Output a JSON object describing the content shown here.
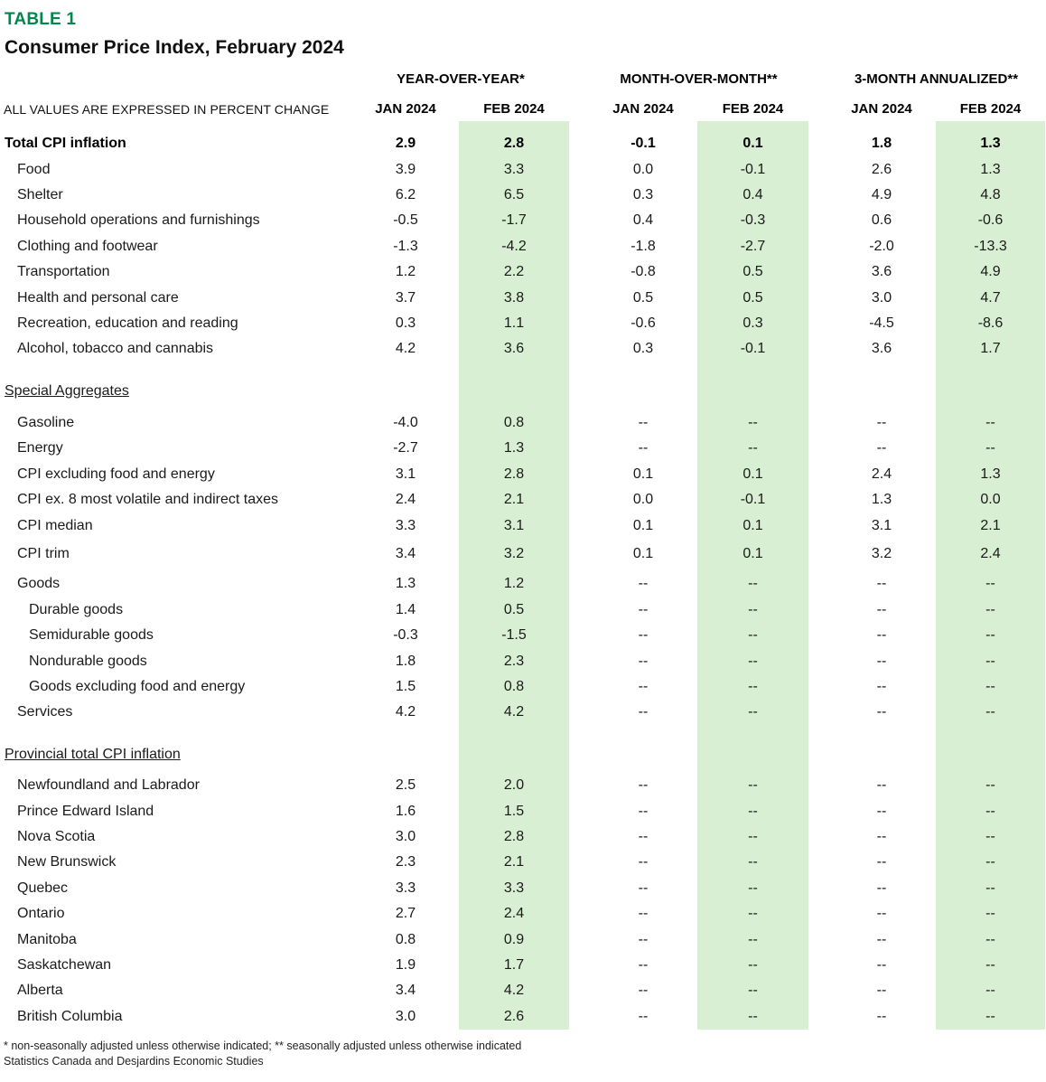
{
  "header": {
    "table_tag": "TABLE 1",
    "title": "Consumer Price Index, February 2024",
    "note": "ALL VALUES ARE EXPRESSED IN PERCENT CHANGE",
    "groups": [
      "YEAR-OVER-YEAR*",
      "MONTH-OVER-MONTH**",
      "3-MONTH ANNUALIZED**"
    ],
    "months": [
      "JAN 2024",
      "FEB 2024",
      "JAN 2024",
      "FEB 2024",
      "JAN 2024",
      "FEB 2024"
    ]
  },
  "colors": {
    "accent_green": "#00874e",
    "feb_band_green": "#d9efd3"
  },
  "table": {
    "rows": [
      {
        "label": "Total CPI inflation",
        "style": "total",
        "indent": 0,
        "values": [
          "2.9",
          "2.8",
          "-0.1",
          "0.1",
          "1.8",
          "1.3"
        ]
      },
      {
        "label": "Food",
        "indent": 1,
        "values": [
          "3.9",
          "3.3",
          "0.0",
          "-0.1",
          "2.6",
          "1.3"
        ]
      },
      {
        "label": "Shelter",
        "indent": 1,
        "values": [
          "6.2",
          "6.5",
          "0.3",
          "0.4",
          "4.9",
          "4.8"
        ]
      },
      {
        "label": "Household operations and furnishings",
        "indent": 1,
        "values": [
          "-0.5",
          "-1.7",
          "0.4",
          "-0.3",
          "0.6",
          "-0.6"
        ]
      },
      {
        "label": "Clothing and footwear",
        "indent": 1,
        "values": [
          "-1.3",
          "-4.2",
          "-1.8",
          "-2.7",
          "-2.0",
          "-13.3"
        ]
      },
      {
        "label": "Transportation",
        "indent": 1,
        "values": [
          "1.2",
          "2.2",
          "-0.8",
          "0.5",
          "3.6",
          "4.9"
        ]
      },
      {
        "label": "Health and personal care",
        "indent": 1,
        "values": [
          "3.7",
          "3.8",
          "0.5",
          "0.5",
          "3.0",
          "4.7"
        ]
      },
      {
        "label": "Recreation, education and reading",
        "indent": 1,
        "values": [
          "0.3",
          "1.1",
          "-0.6",
          "0.3",
          "-4.5",
          "-8.6"
        ]
      },
      {
        "label": "Alcohol, tobacco and cannabis",
        "indent": 1,
        "values": [
          "4.2",
          "3.6",
          "0.3",
          "-0.1",
          "3.6",
          "1.7"
        ]
      },
      {
        "label": "Special Aggregates",
        "style": "section",
        "indent": 0,
        "gap": 18,
        "values": []
      },
      {
        "label": "Gasoline",
        "indent": 1,
        "gap": 7,
        "values": [
          "-4.0",
          "0.8",
          "--",
          "--",
          "--",
          "--"
        ]
      },
      {
        "label": "Energy",
        "indent": 1,
        "values": [
          "-2.7",
          "1.3",
          "--",
          "--",
          "--",
          "--"
        ]
      },
      {
        "label": "CPI excluding food and energy",
        "indent": 1,
        "values": [
          "3.1",
          "2.8",
          "0.1",
          "0.1",
          "2.4",
          "1.3"
        ]
      },
      {
        "label": "CPI ex. 8 most volatile and indirect taxes",
        "indent": 1,
        "values": [
          "2.4",
          "2.1",
          "0.0",
          "-0.1",
          "1.3",
          "0.0"
        ]
      },
      {
        "label": "CPI median",
        "indent": 1,
        "values": [
          "3.3",
          "3.1",
          "0.1",
          "0.1",
          "3.1",
          "2.1"
        ]
      },
      {
        "label": "CPI trim",
        "indent": 1,
        "gap": 3,
        "values": [
          "3.4",
          "3.2",
          "0.1",
          "0.1",
          "3.2",
          "2.4"
        ]
      },
      {
        "label": "Goods",
        "indent": 1,
        "gap": 5,
        "values": [
          "1.3",
          "1.2",
          "--",
          "--",
          "--",
          "--"
        ]
      },
      {
        "label": "Durable goods",
        "indent": 2,
        "values": [
          "1.4",
          "0.5",
          "--",
          "--",
          "--",
          "--"
        ]
      },
      {
        "label": "Semidurable goods",
        "indent": 2,
        "values": [
          "-0.3",
          "-1.5",
          "--",
          "--",
          "--",
          "--"
        ]
      },
      {
        "label": "Nondurable goods",
        "indent": 2,
        "values": [
          "1.8",
          "2.3",
          "--",
          "--",
          "--",
          "--"
        ]
      },
      {
        "label": "Goods excluding food and energy",
        "indent": 2,
        "values": [
          "1.5",
          "0.8",
          "--",
          "--",
          "--",
          "--"
        ]
      },
      {
        "label": "Services",
        "indent": 1,
        "values": [
          "4.2",
          "4.2",
          "--",
          "--",
          "--",
          "--"
        ]
      },
      {
        "label": "Provincial total CPI inflation",
        "style": "section",
        "indent": 0,
        "gap": 18,
        "values": []
      },
      {
        "label": "Newfoundland and Labrador",
        "indent": 1,
        "gap": 6,
        "values": [
          "2.5",
          "2.0",
          "--",
          "--",
          "--",
          "--"
        ]
      },
      {
        "label": "Prince Edward Island",
        "indent": 1,
        "values": [
          "1.6",
          "1.5",
          "--",
          "--",
          "--",
          "--"
        ]
      },
      {
        "label": "Nova Scotia",
        "indent": 1,
        "values": [
          "3.0",
          "2.8",
          "--",
          "--",
          "--",
          "--"
        ]
      },
      {
        "label": "New Brunswick",
        "indent": 1,
        "values": [
          "2.3",
          "2.1",
          "--",
          "--",
          "--",
          "--"
        ]
      },
      {
        "label": "Quebec",
        "indent": 1,
        "values": [
          "3.3",
          "3.3",
          "--",
          "--",
          "--",
          "--"
        ]
      },
      {
        "label": "Ontario",
        "indent": 1,
        "values": [
          "2.7",
          "2.4",
          "--",
          "--",
          "--",
          "--"
        ]
      },
      {
        "label": "Manitoba",
        "indent": 1,
        "values": [
          "0.8",
          "0.9",
          "--",
          "--",
          "--",
          "--"
        ]
      },
      {
        "label": "Saskatchewan",
        "indent": 1,
        "values": [
          "1.9",
          "1.7",
          "--",
          "--",
          "--",
          "--"
        ]
      },
      {
        "label": "Alberta",
        "indent": 1,
        "values": [
          "3.4",
          "4.2",
          "--",
          "--",
          "--",
          "--"
        ]
      },
      {
        "label": "British Columbia",
        "indent": 1,
        "values": [
          "3.0",
          "2.6",
          "--",
          "--",
          "--",
          "--"
        ]
      }
    ]
  },
  "footer": {
    "note": "* non-seasonally adjusted unless otherwise indicated;  ** seasonally adjusted unless otherwise indicated",
    "source": "Statistics Canada and Desjardins Economic Studies"
  }
}
